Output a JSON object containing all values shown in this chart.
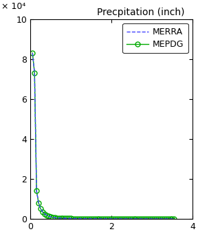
{
  "title": "Precpitation (inch)",
  "ylim": [
    0,
    10
  ],
  "xlim": [
    0,
    4
  ],
  "yticks": [
    0,
    2,
    4,
    6,
    8,
    10
  ],
  "xticks": [
    0,
    2,
    4
  ],
  "y_scale_label": "× 10⁴",
  "merra_x": [
    0.05,
    0.1,
    0.15,
    0.2,
    0.25,
    0.3,
    0.35,
    0.4,
    0.45,
    0.5,
    0.55,
    0.6,
    0.65,
    0.7,
    0.75,
    0.8,
    0.85,
    0.9,
    0.95,
    1.0,
    1.05,
    1.1,
    1.15,
    1.2,
    1.25,
    1.3,
    1.35,
    1.4,
    1.45,
    1.5,
    1.55,
    1.6,
    1.65,
    1.7,
    1.75,
    1.8,
    1.85,
    1.9,
    1.95,
    2.0,
    2.05,
    2.1,
    2.15,
    2.2,
    2.25,
    2.3,
    2.35,
    2.4,
    2.45,
    2.5,
    2.55,
    2.6,
    2.65,
    2.7,
    2.75,
    2.8,
    2.85,
    2.9,
    2.95,
    3.0,
    3.05,
    3.1,
    3.15,
    3.2,
    3.25,
    3.3,
    3.35,
    3.4,
    3.45,
    3.5,
    3.55
  ],
  "merra_y": [
    8.3,
    7.3,
    1.4,
    0.8,
    0.5,
    0.35,
    0.25,
    0.18,
    0.13,
    0.1,
    0.08,
    0.06,
    0.05,
    0.04,
    0.035,
    0.03,
    0.025,
    0.022,
    0.02,
    0.018,
    0.016,
    0.014,
    0.013,
    0.012,
    0.011,
    0.01,
    0.009,
    0.009,
    0.008,
    0.008,
    0.007,
    0.007,
    0.006,
    0.006,
    0.006,
    0.005,
    0.005,
    0.005,
    0.004,
    0.004,
    0.004,
    0.004,
    0.003,
    0.003,
    0.003,
    0.003,
    0.003,
    0.003,
    0.002,
    0.002,
    0.002,
    0.002,
    0.002,
    0.002,
    0.002,
    0.002,
    0.002,
    0.002,
    0.001,
    0.001,
    0.001,
    0.001,
    0.001,
    0.001,
    0.001,
    0.001,
    0.001,
    0.001,
    0.001,
    0.001,
    0.001
  ],
  "mepdg_x": [
    0.05,
    0.1,
    0.15,
    0.2,
    0.25,
    0.3,
    0.35,
    0.4,
    0.45,
    0.5,
    0.55,
    0.6,
    0.65,
    0.7,
    0.75,
    0.8,
    0.85,
    0.9,
    0.95,
    1.0,
    1.05,
    1.1,
    1.15,
    1.2,
    1.25,
    1.3,
    1.35,
    1.4,
    1.45,
    1.5,
    1.55,
    1.6,
    1.65,
    1.7,
    1.75,
    1.8,
    1.85,
    1.9,
    1.95,
    2.0,
    2.05,
    2.1,
    2.15,
    2.2,
    2.25,
    2.3,
    2.35,
    2.4,
    2.45,
    2.5,
    2.55,
    2.6,
    2.65,
    2.7,
    2.75,
    2.8,
    2.85,
    2.9,
    2.95,
    3.0,
    3.05,
    3.1,
    3.15,
    3.2,
    3.25,
    3.3,
    3.35,
    3.4,
    3.45,
    3.5,
    3.55
  ],
  "mepdg_y": [
    8.3,
    7.3,
    1.4,
    0.8,
    0.5,
    0.35,
    0.25,
    0.18,
    0.13,
    0.1,
    0.08,
    0.06,
    0.05,
    0.04,
    0.035,
    0.03,
    0.025,
    0.022,
    0.02,
    0.018,
    0.016,
    0.014,
    0.013,
    0.012,
    0.011,
    0.01,
    0.009,
    0.009,
    0.008,
    0.008,
    0.007,
    0.007,
    0.006,
    0.006,
    0.006,
    0.005,
    0.005,
    0.005,
    0.004,
    0.004,
    0.004,
    0.004,
    0.003,
    0.003,
    0.003,
    0.003,
    0.003,
    0.003,
    0.002,
    0.002,
    0.002,
    0.002,
    0.002,
    0.002,
    0.002,
    0.002,
    0.002,
    0.002,
    0.001,
    0.001,
    0.001,
    0.001,
    0.001,
    0.001,
    0.001,
    0.001,
    0.001,
    0.001,
    0.001,
    0.001,
    0.001
  ],
  "merra_color": "#4444ff",
  "mepdg_color": "#00aa00",
  "bg_color": "#ffffff",
  "figsize": [
    2.88,
    3.4
  ],
  "dpi": 100
}
